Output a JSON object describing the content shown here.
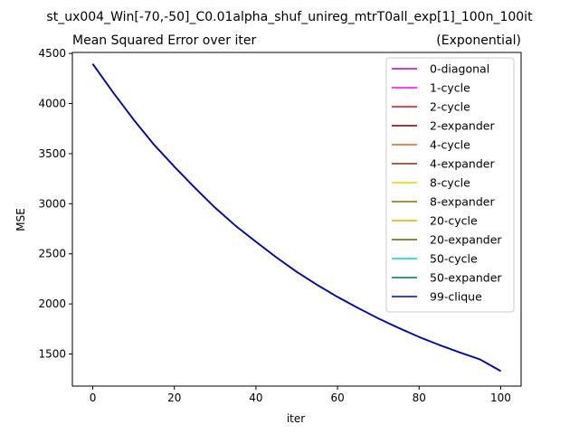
{
  "figure_title": "st_ux004_Win[-70,-50]_C0.01alpha_shuf_unireg_mtrT0all_exp[1]_100n_100it",
  "chart_data": {
    "type": "line",
    "title_left": "Mean Squared Error over iter",
    "title_right": "(Exponential)",
    "xlabel": "iter",
    "ylabel": "MSE",
    "xlim": [
      -5,
      105
    ],
    "ylim": [
      1180,
      4510
    ],
    "xticks": [
      0,
      20,
      40,
      60,
      80,
      100
    ],
    "yticks": [
      1500,
      2000,
      2500,
      3000,
      3500,
      4000,
      4500
    ],
    "grid": false,
    "legend_position": "upper-right",
    "x": [
      0,
      5,
      10,
      15,
      20,
      25,
      30,
      35,
      40,
      45,
      50,
      55,
      60,
      65,
      70,
      75,
      80,
      85,
      90,
      95,
      100
    ],
    "series": [
      {
        "name": "0-diagonal",
        "color": "#bf00bf",
        "values": [
          4395,
          4110,
          3840,
          3590,
          3370,
          3160,
          2960,
          2780,
          2620,
          2465,
          2320,
          2190,
          2070,
          1960,
          1855,
          1760,
          1670,
          1590,
          1515,
          1445,
          1330
        ]
      },
      {
        "name": "1-cycle",
        "color": "#ff00ff",
        "values": [
          4395,
          4110,
          3840,
          3590,
          3370,
          3160,
          2960,
          2780,
          2620,
          2465,
          2320,
          2190,
          2070,
          1960,
          1855,
          1760,
          1670,
          1590,
          1515,
          1445,
          1330
        ]
      },
      {
        "name": "2-cycle",
        "color": "#d0102a",
        "values": [
          4395,
          4110,
          3840,
          3590,
          3370,
          3160,
          2960,
          2780,
          2620,
          2465,
          2320,
          2190,
          2070,
          1960,
          1855,
          1760,
          1670,
          1590,
          1515,
          1445,
          1330
        ]
      },
      {
        "name": "2-expander",
        "color": "#6b0000",
        "values": [
          4395,
          4110,
          3840,
          3590,
          3370,
          3160,
          2960,
          2780,
          2620,
          2465,
          2320,
          2190,
          2070,
          1960,
          1855,
          1760,
          1670,
          1590,
          1515,
          1445,
          1330
        ]
      },
      {
        "name": "4-cycle",
        "color": "#e06020",
        "values": [
          4395,
          4110,
          3840,
          3590,
          3370,
          3160,
          2960,
          2780,
          2620,
          2465,
          2320,
          2190,
          2070,
          1960,
          1855,
          1760,
          1670,
          1590,
          1515,
          1445,
          1330
        ]
      },
      {
        "name": "4-expander",
        "color": "#803000",
        "values": [
          4395,
          4110,
          3840,
          3590,
          3370,
          3160,
          2960,
          2780,
          2620,
          2465,
          2320,
          2190,
          2070,
          1960,
          1855,
          1760,
          1670,
          1590,
          1515,
          1445,
          1330
        ]
      },
      {
        "name": "8-cycle",
        "color": "#e8d000",
        "values": [
          4395,
          4110,
          3840,
          3590,
          3370,
          3160,
          2960,
          2780,
          2620,
          2465,
          2320,
          2190,
          2070,
          1960,
          1855,
          1760,
          1670,
          1590,
          1515,
          1445,
          1330
        ]
      },
      {
        "name": "8-expander",
        "color": "#807000",
        "values": [
          4395,
          4110,
          3840,
          3590,
          3370,
          3160,
          2960,
          2780,
          2620,
          2465,
          2320,
          2190,
          2070,
          1960,
          1855,
          1760,
          1670,
          1590,
          1515,
          1445,
          1330
        ]
      },
      {
        "name": "20-cycle",
        "color": "#e0b000",
        "values": [
          4395,
          4110,
          3840,
          3590,
          3370,
          3160,
          2960,
          2780,
          2620,
          2465,
          2320,
          2190,
          2070,
          1960,
          1855,
          1760,
          1670,
          1590,
          1515,
          1445,
          1330
        ]
      },
      {
        "name": "20-expander",
        "color": "#705800",
        "values": [
          4395,
          4110,
          3840,
          3590,
          3370,
          3160,
          2960,
          2780,
          2620,
          2465,
          2320,
          2190,
          2070,
          1960,
          1855,
          1760,
          1670,
          1590,
          1515,
          1445,
          1330
        ]
      },
      {
        "name": "50-cycle",
        "color": "#00d8c0",
        "values": [
          4395,
          4110,
          3840,
          3590,
          3370,
          3160,
          2960,
          2780,
          2620,
          2465,
          2320,
          2190,
          2070,
          1960,
          1855,
          1760,
          1670,
          1590,
          1515,
          1445,
          1330
        ]
      },
      {
        "name": "50-expander",
        "color": "#007060",
        "values": [
          4395,
          4110,
          3840,
          3590,
          3370,
          3160,
          2960,
          2780,
          2620,
          2465,
          2320,
          2190,
          2070,
          1960,
          1855,
          1760,
          1670,
          1590,
          1515,
          1445,
          1330
        ]
      },
      {
        "name": "99-clique",
        "color": "#0000c0",
        "values": [
          4395,
          4110,
          3840,
          3590,
          3370,
          3160,
          2960,
          2780,
          2620,
          2465,
          2320,
          2190,
          2070,
          1960,
          1855,
          1760,
          1670,
          1590,
          1515,
          1445,
          1330
        ]
      }
    ]
  }
}
